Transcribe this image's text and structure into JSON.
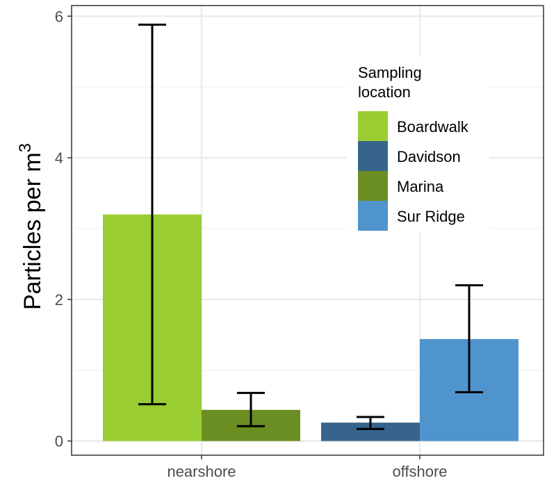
{
  "chart_data": {
    "type": "bar",
    "categories": [
      "nearshore",
      "offshore"
    ],
    "ylabel": "Particles per m",
    "ylabel_superscript": "3",
    "ylim": [
      -0.2,
      6.15
    ],
    "yticks": [
      0,
      2,
      4,
      6
    ],
    "yticks_labels": [
      "0",
      "2",
      "4",
      "6"
    ],
    "grid": true,
    "legend": {
      "title_line1": "Sampling",
      "title_line2": "location",
      "position": "top-right",
      "items": [
        {
          "name": "Boardwalk",
          "color": "#9acd32"
        },
        {
          "name": "Davidson",
          "color": "#36648b"
        },
        {
          "name": "Marina",
          "color": "#6b8e23"
        },
        {
          "name": "Sur Ridge",
          "color": "#4f94cd"
        }
      ]
    },
    "bars": [
      {
        "category": "nearshore",
        "series": "Boardwalk",
        "value": 3.2,
        "err_low": 0.52,
        "err_high": 5.88,
        "color": "#9acd32"
      },
      {
        "category": "nearshore",
        "series": "Marina",
        "value": 0.44,
        "err_low": 0.21,
        "err_high": 0.68,
        "color": "#6b8e23"
      },
      {
        "category": "offshore",
        "series": "Davidson",
        "value": 0.26,
        "err_low": 0.17,
        "err_high": 0.34,
        "color": "#36648b"
      },
      {
        "category": "offshore",
        "series": "Sur Ridge",
        "value": 1.44,
        "err_low": 0.69,
        "err_high": 2.2,
        "color": "#4f94cd"
      }
    ]
  }
}
